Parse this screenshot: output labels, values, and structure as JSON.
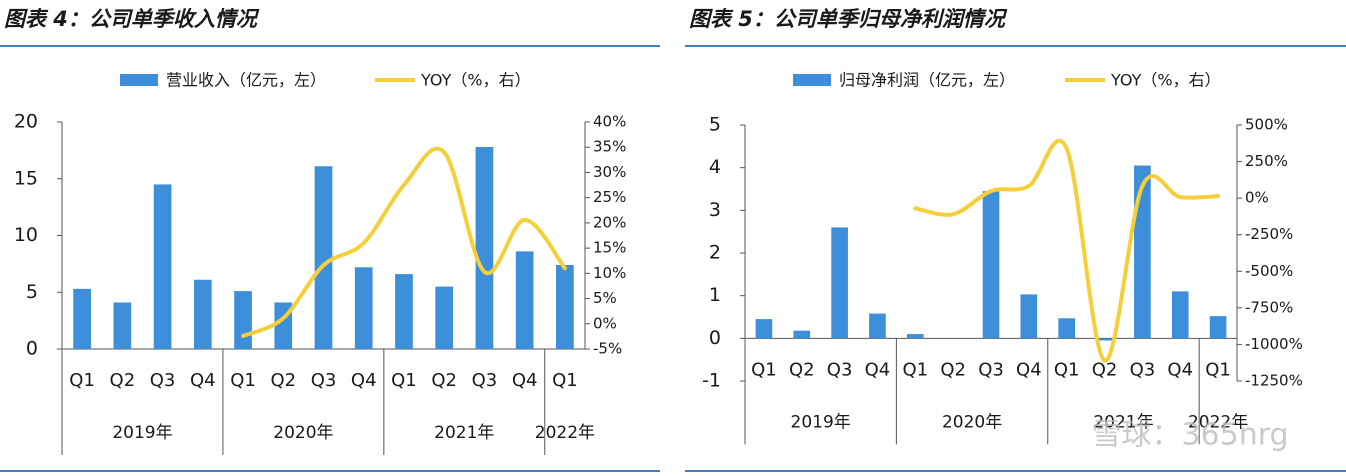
{
  "chart_data": [
    {
      "type": "bar_line",
      "title": "图表 4：公司单季收入情况",
      "categories": [
        "Q1",
        "Q2",
        "Q3",
        "Q4",
        "Q1",
        "Q2",
        "Q3",
        "Q4",
        "Q1",
        "Q2",
        "Q3",
        "Q4",
        "Q1"
      ],
      "groups": [
        "2019年",
        "2020年",
        "2021年",
        "2022年"
      ],
      "series": [
        {
          "name": "营业收入（亿元，左）",
          "color": "#3d8fd9",
          "axis": "y",
          "kind": "bar",
          "values": [
            5.3,
            4.1,
            14.5,
            6.1,
            5.1,
            4.1,
            16.1,
            7.2,
            6.6,
            5.5,
            17.8,
            8.6,
            7.4
          ]
        },
        {
          "name": "YOY（%，右）",
          "color": "#f5cf3a",
          "axis": "y2",
          "kind": "line",
          "values": [
            null,
            null,
            null,
            null,
            -2.4,
            1.1,
            11.6,
            16,
            27.5,
            34,
            10.3,
            20.6,
            11
          ]
        }
      ],
      "ylim": [
        0,
        20
      ],
      "yticks": [
        0,
        5,
        10,
        15,
        20
      ],
      "y2lim": [
        -5,
        40
      ],
      "y2ticks": [
        {
          "value": -5,
          "label": "-5%"
        },
        {
          "value": 0,
          "label": "0%"
        },
        {
          "value": 5,
          "label": "5%"
        },
        {
          "value": 10,
          "label": "10%"
        },
        {
          "value": 15,
          "label": "15%"
        },
        {
          "value": 20,
          "label": "20%"
        },
        {
          "value": 25,
          "label": "25%"
        },
        {
          "value": 30,
          "label": "30%"
        },
        {
          "value": 35,
          "label": "35%"
        },
        {
          "value": 40,
          "label": "40%"
        }
      ]
    },
    {
      "type": "bar_line",
      "title": "图表 5：公司单季归母净利润情况",
      "categories": [
        "Q1",
        "Q2",
        "Q3",
        "Q4",
        "Q1",
        "Q2",
        "Q3",
        "Q4",
        "Q1",
        "Q2",
        "Q3",
        "Q4",
        "Q1"
      ],
      "groups": [
        "2019年",
        "2020年",
        "2021年",
        "2022年"
      ],
      "series": [
        {
          "name": "归母净利润（亿元，左）",
          "color": "#3d8fd9",
          "axis": "y",
          "kind": "bar",
          "values": [
            0.45,
            0.18,
            2.6,
            0.58,
            0.1,
            0,
            3.45,
            1.03,
            0.47,
            -0.05,
            4.05,
            1.1,
            0.52
          ]
        },
        {
          "name": "YOY（%，右）",
          "color": "#f5cf3a",
          "axis": "y2",
          "kind": "line",
          "values": [
            null,
            null,
            null,
            null,
            -69,
            -110,
            48,
            83,
            338,
            -1109,
            83,
            7,
            14
          ]
        }
      ],
      "ylim": [
        -1,
        5
      ],
      "yticks": [
        -1,
        0,
        1,
        2,
        3,
        4,
        5
      ],
      "y2lim": [
        -1250,
        500
      ],
      "y2ticks": [
        {
          "value": -1250,
          "label": "-1250%"
        },
        {
          "value": -1000,
          "label": "-1000%"
        },
        {
          "value": -750,
          "label": "-750%"
        },
        {
          "value": -500,
          "label": "-500%"
        },
        {
          "value": -250,
          "label": "-250%"
        },
        {
          "value": 0,
          "label": "0%"
        },
        {
          "value": 250,
          "label": "250%"
        },
        {
          "value": 500,
          "label": "500%"
        }
      ]
    }
  ],
  "watermark": "雪球：365nrg"
}
